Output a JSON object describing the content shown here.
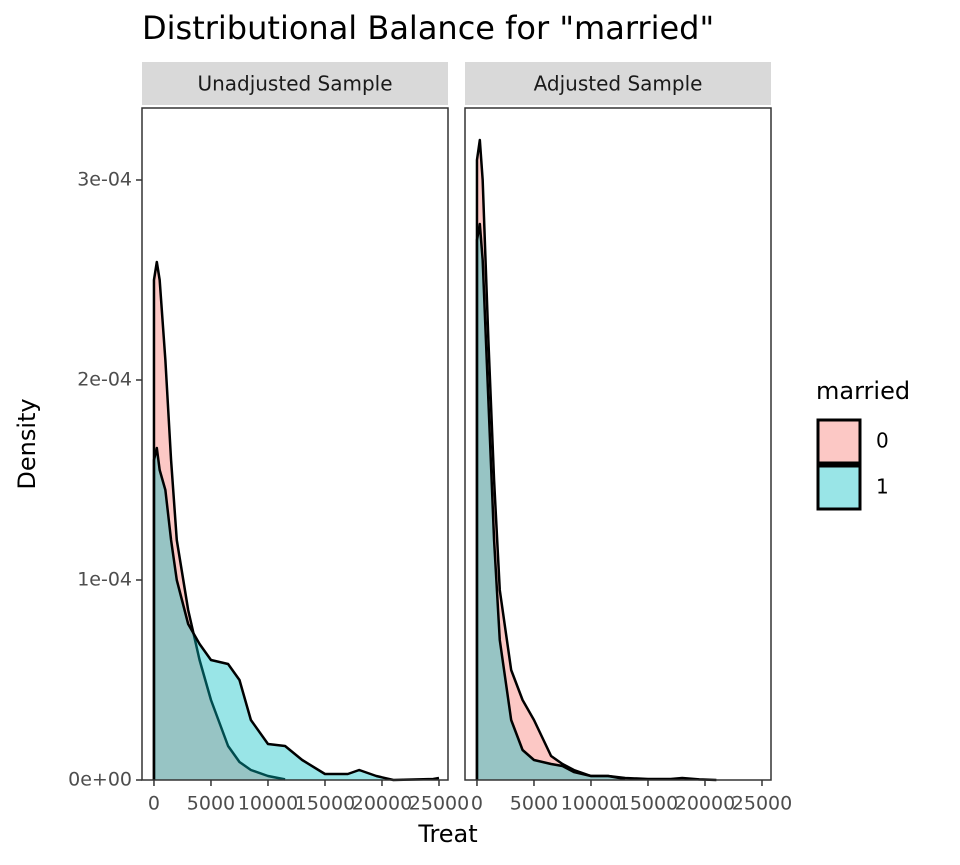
{
  "chart_data": {
    "type": "area",
    "title": "Distributional Balance for \"married\"",
    "x_label": "Treat",
    "y_label": "Density",
    "legend_title": "married",
    "grid": false,
    "xlim": [
      -1050,
      25790
    ],
    "ylim": [
      0,
      0.000336
    ],
    "xticks": [
      0,
      5000,
      10000,
      15000,
      20000,
      25000
    ],
    "yticks": [
      {
        "value": 0,
        "label": "0e+00"
      },
      {
        "value": 0.0001,
        "label": "1e-04"
      },
      {
        "value": 0.0002,
        "label": "2e-04"
      },
      {
        "value": 0.0003,
        "label": "3e-04"
      }
    ],
    "x": [
      0,
      250,
      500,
      1000,
      1500,
      2000,
      3000,
      4000,
      5000,
      6500,
      7500,
      8500,
      10000,
      11500,
      13000,
      15000,
      17000,
      18000,
      19500,
      21000,
      24500,
      25000
    ],
    "series": [
      {
        "name": "0",
        "color": "#F8766D"
      },
      {
        "name": "1",
        "color": "#00BFC4"
      }
    ],
    "panels": [
      {
        "title": "Unadjusted Sample",
        "values": [
          [
            0.00025,
            0.000259,
            0.00025,
            0.00021,
            0.00016,
            0.00012,
            8.5e-05,
            6e-05,
            4e-05,
            1.7e-05,
            9e-06,
            5e-06,
            2e-06,
            3e-07,
            null,
            null,
            null,
            null,
            null,
            null,
            null,
            null
          ],
          [
            0.00016,
            0.000166,
            0.000155,
            0.000145,
            0.00012,
            0.0001,
            7.8e-05,
            6.8e-05,
            6e-05,
            5.8e-05,
            5e-05,
            3e-05,
            1.8e-05,
            1.7e-05,
            1e-05,
            3e-06,
            3e-06,
            5e-06,
            2e-06,
            0,
            5e-07,
            1e-06
          ]
        ]
      },
      {
        "title": "Adjusted Sample",
        "values": [
          [
            0.00031,
            0.00032,
            0.0003,
            0.00022,
            0.00015,
            9.5e-05,
            5.5e-05,
            4e-05,
            3e-05,
            1.2e-05,
            8e-06,
            5e-06,
            2e-06,
            2e-06,
            1e-06,
            5e-07,
            5e-07,
            1e-06,
            3e-07,
            0,
            null,
            null
          ],
          [
            0.00027,
            0.000278,
            0.00026,
            0.00019,
            0.00012,
            7e-05,
            3e-05,
            1.5e-05,
            1e-05,
            8e-06,
            7e-06,
            4e-06,
            2e-06,
            2e-06,
            5e-07,
            null,
            null,
            null,
            null,
            null,
            null,
            null
          ]
        ]
      }
    ]
  }
}
